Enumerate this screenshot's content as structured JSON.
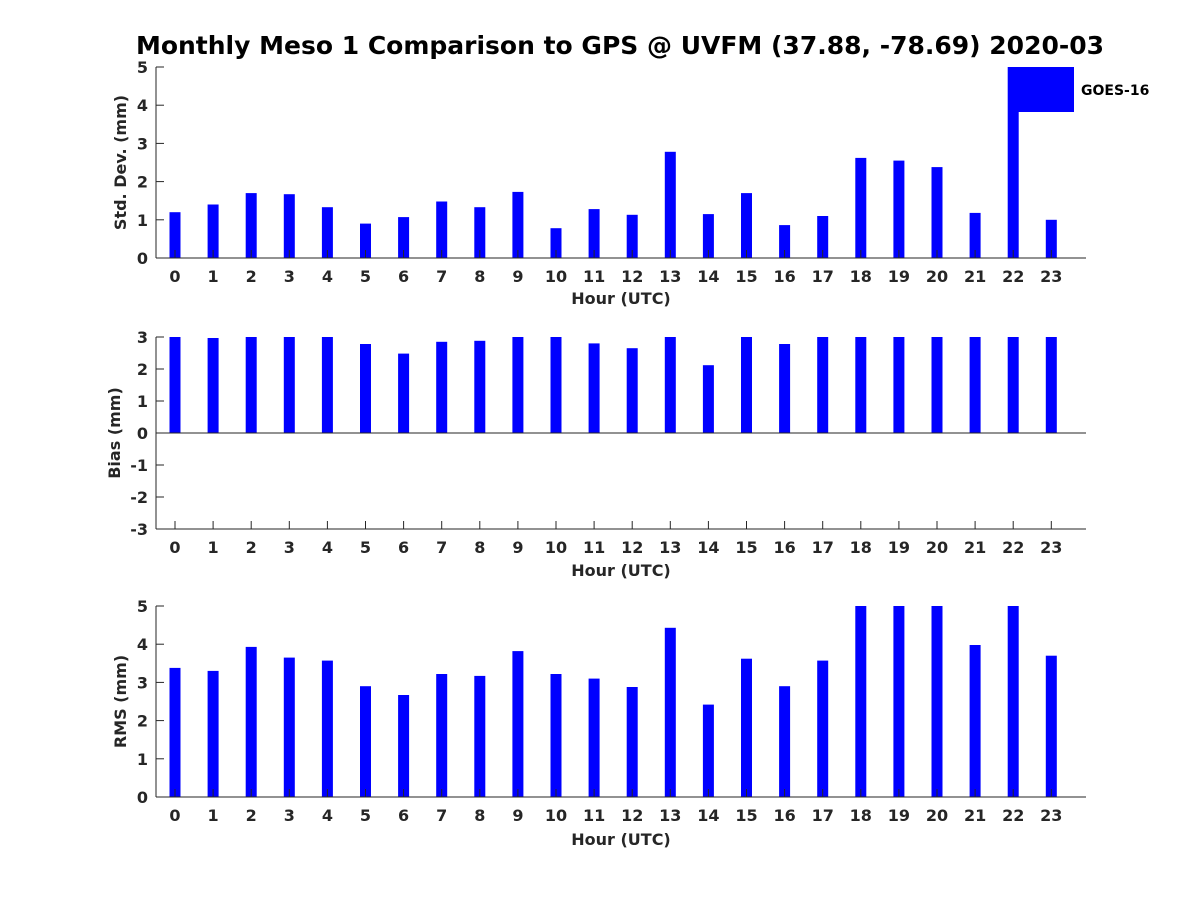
{
  "title": "Monthly Meso 1 Comparison to GPS @ UVFM (37.88, -78.69) 2020-03",
  "series_color": "#0000ff",
  "legend": {
    "label": "GOES-16",
    "location": "top-right"
  },
  "chart_data": [
    {
      "type": "bar",
      "name": "std-dev",
      "xlabel": "Hour (UTC)",
      "ylabel": "Std. Dev. (mm)",
      "ylim": [
        0,
        5
      ],
      "yticks": [
        "0",
        "1",
        "2",
        "3",
        "4",
        "5"
      ],
      "categories": [
        "0",
        "1",
        "2",
        "3",
        "4",
        "5",
        "6",
        "7",
        "8",
        "9",
        "10",
        "11",
        "12",
        "13",
        "14",
        "15",
        "16",
        "17",
        "18",
        "19",
        "20",
        "21",
        "22",
        "23"
      ],
      "values": [
        1.2,
        1.4,
        1.7,
        1.67,
        1.33,
        0.9,
        1.07,
        1.48,
        1.33,
        1.73,
        0.78,
        1.28,
        1.13,
        2.78,
        1.15,
        1.7,
        0.86,
        1.1,
        2.62,
        2.55,
        2.38,
        1.18,
        5.0,
        1.0
      ]
    },
    {
      "type": "bar",
      "name": "bias",
      "xlabel": "Hour (UTC)",
      "ylabel": "Bias (mm)",
      "ylim": [
        -3,
        3
      ],
      "yticks": [
        "-3",
        "-2",
        "-1",
        "0",
        "1",
        "2",
        "3"
      ],
      "categories": [
        "0",
        "1",
        "2",
        "3",
        "4",
        "5",
        "6",
        "7",
        "8",
        "9",
        "10",
        "11",
        "12",
        "13",
        "14",
        "15",
        "16",
        "17",
        "18",
        "19",
        "20",
        "21",
        "22",
        "23"
      ],
      "values": [
        3.0,
        2.97,
        3.0,
        3.0,
        3.0,
        2.78,
        2.48,
        2.85,
        2.88,
        3.0,
        3.0,
        2.8,
        2.65,
        3.0,
        2.12,
        3.0,
        2.78,
        3.0,
        3.0,
        3.0,
        3.0,
        3.0,
        3.0,
        3.0
      ]
    },
    {
      "type": "bar",
      "name": "rms",
      "xlabel": "Hour (UTC)",
      "ylabel": "RMS (mm)",
      "ylim": [
        0,
        5
      ],
      "yticks": [
        "0",
        "1",
        "2",
        "3",
        "4",
        "5"
      ],
      "categories": [
        "0",
        "1",
        "2",
        "3",
        "4",
        "5",
        "6",
        "7",
        "8",
        "9",
        "10",
        "11",
        "12",
        "13",
        "14",
        "15",
        "16",
        "17",
        "18",
        "19",
        "20",
        "21",
        "22",
        "23"
      ],
      "values": [
        3.38,
        3.3,
        3.93,
        3.65,
        3.57,
        2.9,
        2.67,
        3.22,
        3.17,
        3.82,
        3.22,
        3.1,
        2.88,
        4.43,
        2.42,
        3.62,
        2.9,
        3.57,
        5.0,
        5.0,
        5.0,
        3.98,
        5.0,
        3.7
      ]
    }
  ]
}
